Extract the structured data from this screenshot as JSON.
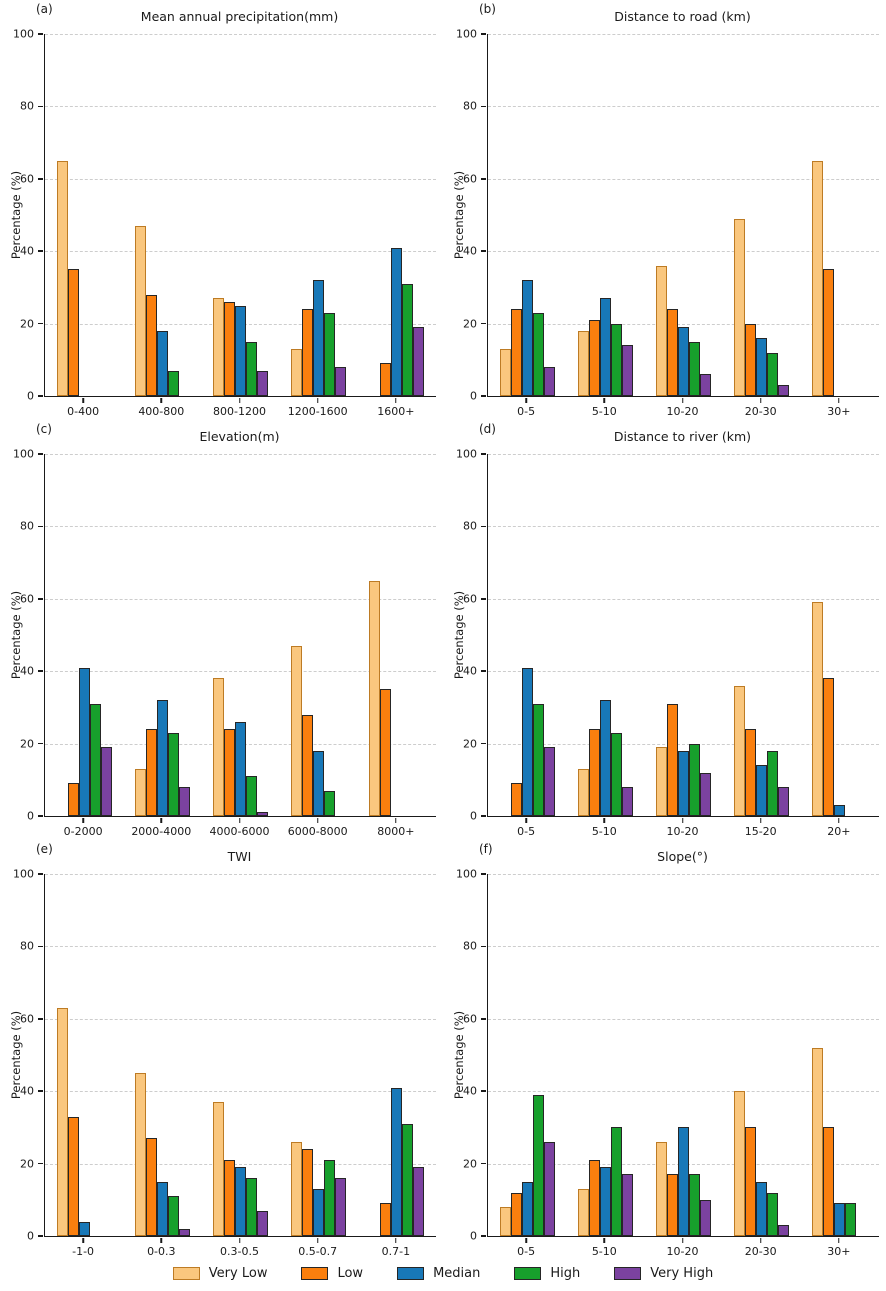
{
  "figure": {
    "ylabel": "Percentage (%)",
    "yticks": [
      0,
      20,
      40,
      60,
      80,
      100
    ],
    "ylim": [
      0,
      100
    ]
  },
  "legend": {
    "position": "bottom-center",
    "items": [
      {
        "label": "Very Low",
        "color": "#FAC77E",
        "border": "#BD7B24"
      },
      {
        "label": "Low",
        "color": "#FA7F0E",
        "border": "#262626"
      },
      {
        "label": "Median",
        "color": "#1878B8",
        "border": "#262626"
      },
      {
        "label": "High",
        "color": "#17A02C",
        "border": "#262626"
      },
      {
        "label": "Very High",
        "color": "#7B42A0",
        "border": "#262626"
      }
    ]
  },
  "chart_data": [
    {
      "type": "bar",
      "panel_label": "(a)",
      "title": "Mean annual precipitation(mm)",
      "xlabel": "",
      "ylabel": "Percentage (%)",
      "ylim": [
        0,
        100
      ],
      "grid": true,
      "categories": [
        "0-400",
        "400-800",
        "800-1200",
        "1200-1600",
        "1600+"
      ],
      "series": [
        {
          "name": "Very Low",
          "values": [
            65,
            47,
            27,
            13,
            0
          ]
        },
        {
          "name": "Low",
          "values": [
            35,
            28,
            26,
            24,
            9
          ]
        },
        {
          "name": "Median",
          "values": [
            0,
            18,
            25,
            32,
            41
          ]
        },
        {
          "name": "High",
          "values": [
            0,
            7,
            15,
            23,
            31
          ]
        },
        {
          "name": "Very High",
          "values": [
            0,
            0,
            7,
            8,
            19
          ]
        }
      ]
    },
    {
      "type": "bar",
      "panel_label": "(b)",
      "title": "Distance to road (km)",
      "xlabel": "",
      "ylabel": "Percentage (%)",
      "ylim": [
        0,
        100
      ],
      "grid": true,
      "categories": [
        "0-5",
        "5-10",
        "10-20",
        "20-30",
        "30+"
      ],
      "series": [
        {
          "name": "Very Low",
          "values": [
            13,
            18,
            36,
            49,
            65
          ]
        },
        {
          "name": "Low",
          "values": [
            24,
            21,
            24,
            20,
            35
          ]
        },
        {
          "name": "Median",
          "values": [
            32,
            27,
            19,
            16,
            0
          ]
        },
        {
          "name": "High",
          "values": [
            23,
            20,
            15,
            12,
            0
          ]
        },
        {
          "name": "Very High",
          "values": [
            8,
            14,
            6,
            3,
            0
          ]
        }
      ]
    },
    {
      "type": "bar",
      "panel_label": "(c)",
      "title": "Elevation(m)",
      "xlabel": "",
      "ylabel": "Percentage (%)",
      "ylim": [
        0,
        100
      ],
      "grid": true,
      "categories": [
        "0-2000",
        "2000-4000",
        "4000-6000",
        "6000-8000",
        "8000+"
      ],
      "series": [
        {
          "name": "Very Low",
          "values": [
            0,
            13,
            38,
            47,
            65
          ]
        },
        {
          "name": "Low",
          "values": [
            9,
            24,
            24,
            28,
            35
          ]
        },
        {
          "name": "Median",
          "values": [
            41,
            32,
            26,
            18,
            0
          ]
        },
        {
          "name": "High",
          "values": [
            31,
            23,
            11,
            7,
            0
          ]
        },
        {
          "name": "Very High",
          "values": [
            19,
            8,
            1,
            0,
            0
          ]
        }
      ]
    },
    {
      "type": "bar",
      "panel_label": "(d)",
      "title": "Distance to river (km)",
      "xlabel": "",
      "ylabel": "Percentage (%)",
      "ylim": [
        0,
        100
      ],
      "grid": true,
      "categories": [
        "0-5",
        "5-10",
        "10-20",
        "15-20",
        "20+"
      ],
      "series": [
        {
          "name": "Very Low",
          "values": [
            0,
            13,
            19,
            36,
            59
          ]
        },
        {
          "name": "Low",
          "values": [
            9,
            24,
            31,
            24,
            38
          ]
        },
        {
          "name": "Median",
          "values": [
            41,
            32,
            18,
            14,
            3
          ]
        },
        {
          "name": "High",
          "values": [
            31,
            23,
            20,
            18,
            0
          ]
        },
        {
          "name": "Very High",
          "values": [
            19,
            8,
            12,
            8,
            0
          ]
        }
      ]
    },
    {
      "type": "bar",
      "panel_label": "(e)",
      "title": "TWI",
      "xlabel": "",
      "ylabel": "Percentage (%)",
      "ylim": [
        0,
        100
      ],
      "grid": true,
      "categories": [
        "-1-0",
        "0-0.3",
        "0.3-0.5",
        "0.5-0.7",
        "0.7-1"
      ],
      "series": [
        {
          "name": "Very Low",
          "values": [
            63,
            45,
            37,
            26,
            0
          ]
        },
        {
          "name": "Low",
          "values": [
            33,
            27,
            21,
            24,
            9
          ]
        },
        {
          "name": "Median",
          "values": [
            4,
            15,
            19,
            13,
            41
          ]
        },
        {
          "name": "High",
          "values": [
            0,
            11,
            16,
            21,
            31
          ]
        },
        {
          "name": "Very High",
          "values": [
            0,
            2,
            7,
            16,
            19
          ]
        }
      ]
    },
    {
      "type": "bar",
      "panel_label": "(f)",
      "title": "Slope(°)",
      "xlabel": "",
      "ylabel": "Percentage (%)",
      "ylim": [
        0,
        100
      ],
      "grid": true,
      "categories": [
        "0-5",
        "5-10",
        "10-20",
        "20-30",
        "30+"
      ],
      "series": [
        {
          "name": "Very Low",
          "values": [
            8,
            13,
            26,
            40,
            52
          ]
        },
        {
          "name": "Low",
          "values": [
            12,
            21,
            17,
            30,
            30
          ]
        },
        {
          "name": "Median",
          "values": [
            15,
            19,
            30,
            15,
            9
          ]
        },
        {
          "name": "High",
          "values": [
            39,
            30,
            17,
            12,
            9
          ]
        },
        {
          "name": "Very High",
          "values": [
            26,
            17,
            10,
            3,
            0
          ]
        }
      ]
    }
  ]
}
